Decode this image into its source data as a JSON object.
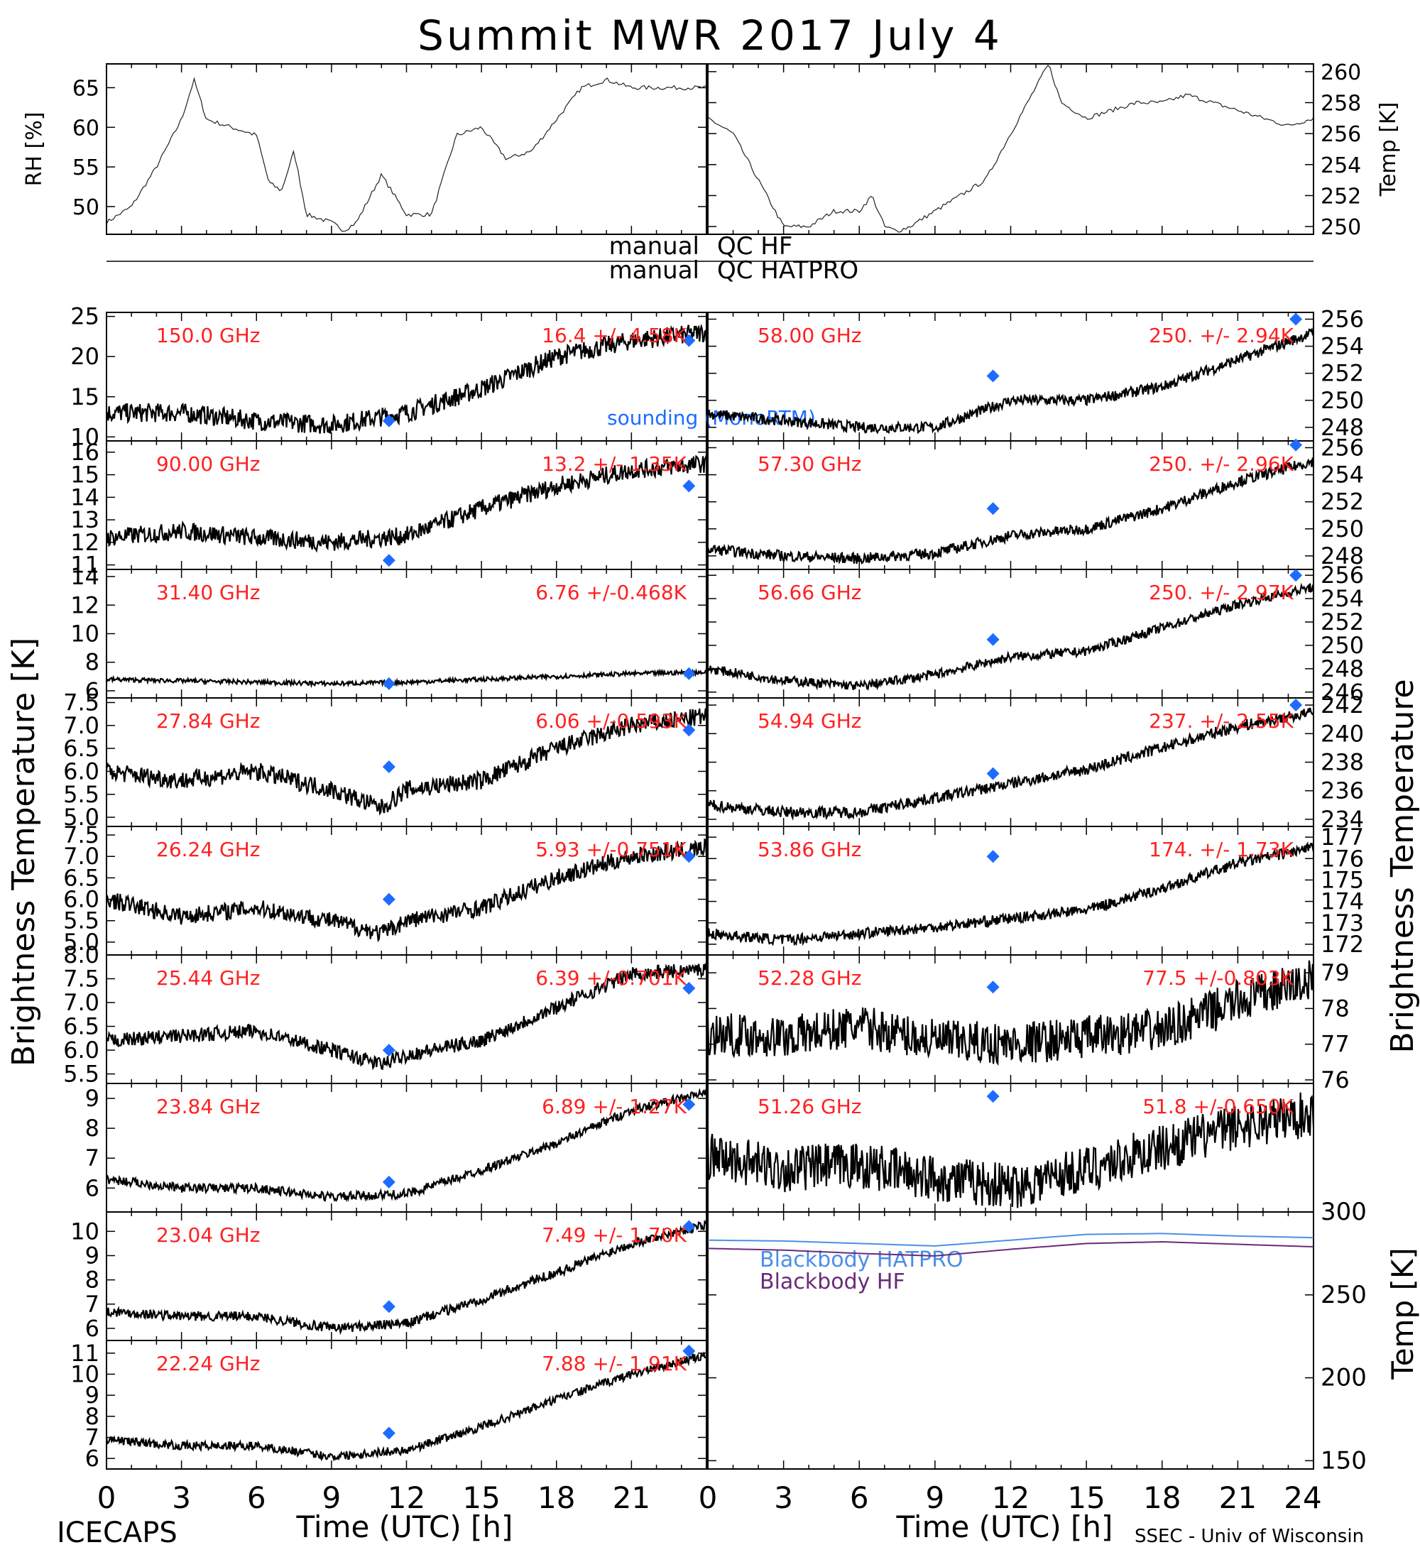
{
  "title": "Summit MWR 2017 July  4",
  "footer": {
    "left": "ICECAPS",
    "xlabel_left": "Time (UTC) [h]",
    "xlabel_right": "Time (UTC) [h]",
    "credit": "SSEC - Univ of Wisconsin"
  },
  "labels": {
    "y_left": "Brightness Temperature [K]",
    "y_right": "Brightness Temperature",
    "temp_right": "Temp [K]",
    "qc_hf": "QC HF",
    "qc_hatpro": "QC HATPRO",
    "manual1": "manual",
    "manual2": "manual",
    "sounding": "sounding (MonoRTM)"
  },
  "colors": {
    "trace": "#000000",
    "annotation": "#ff2020",
    "sounding": "#1e6cff",
    "bb_hatpro": "#4a8fe8",
    "bb_hf": "#6a2a7a"
  },
  "chart_data": [
    {
      "type": "line",
      "panel": "rh",
      "ylabel": "RH [%]",
      "ylim": [
        46.5,
        68
      ],
      "yticks": [
        50,
        55,
        60,
        65
      ],
      "x": [
        0,
        1,
        2,
        3,
        3.5,
        4,
        5,
        6,
        6.5,
        7,
        7.5,
        8,
        9,
        9.5,
        10,
        11,
        12,
        13,
        14,
        15,
        16,
        17,
        18,
        19,
        20,
        21,
        22,
        23,
        24
      ],
      "y": [
        48,
        50,
        55,
        61,
        66,
        61,
        60,
        59,
        53,
        52,
        57,
        49,
        48,
        47,
        48,
        54,
        49,
        49,
        59,
        60,
        56,
        57,
        61,
        65,
        66,
        65,
        65,
        65,
        65
      ]
    },
    {
      "type": "line",
      "panel": "temp",
      "ylabel": "Temp [K]",
      "ylim": [
        249.5,
        260.5
      ],
      "yticks": [
        250,
        252,
        254,
        256,
        258,
        260
      ],
      "x": [
        0,
        1,
        2,
        3,
        4,
        5,
        6,
        6.5,
        7,
        7.5,
        8,
        9,
        10,
        11,
        12,
        13,
        13.5,
        14,
        15,
        16,
        17,
        18,
        19,
        20,
        21,
        22,
        23,
        24
      ],
      "y": [
        257,
        256,
        253,
        250,
        250,
        251,
        251,
        252,
        250,
        249.7,
        250,
        251,
        252,
        253,
        256,
        259,
        260.5,
        258,
        257,
        257.5,
        258,
        258,
        258.5,
        258,
        257.5,
        257,
        256.5,
        257
      ]
    },
    {
      "type": "line",
      "panel": "ch",
      "freq": "150.0 GHz",
      "stats": "16.4 +/- 4.58K",
      "ylim": [
        9.5,
        25.5
      ],
      "yticks": [
        10,
        15,
        20,
        25
      ],
      "x": [
        0,
        3,
        6,
        9,
        12,
        15,
        18,
        21,
        24
      ],
      "y": [
        13,
        13,
        12,
        11.5,
        13,
        16,
        20,
        22,
        23
      ],
      "noise": 1.2,
      "sounding": [
        [
          11.3,
          12
        ],
        [
          23.3,
          22
        ]
      ]
    },
    {
      "type": "line",
      "panel": "ch",
      "freq": "58.00 GHz",
      "stats": "250. +/- 2.94K",
      "ylim": [
        247,
        256.5
      ],
      "yticks": [
        248,
        250,
        252,
        254,
        256
      ],
      "x": [
        0,
        3,
        6,
        9,
        12,
        15,
        18,
        21,
        24
      ],
      "y": [
        249,
        248.5,
        248,
        248,
        250,
        250,
        251,
        253,
        255
      ],
      "noise": 0.4,
      "sounding": [
        [
          11.3,
          251.8
        ],
        [
          23.3,
          256
        ]
      ]
    },
    {
      "type": "line",
      "panel": "ch",
      "freq": "90.00 GHz",
      "stats": "13.2 +/- 1.35K",
      "ylim": [
        10.8,
        16.5
      ],
      "yticks": [
        11,
        12,
        13,
        14,
        15,
        16
      ],
      "x": [
        0,
        3,
        6,
        9,
        12,
        15,
        18,
        21,
        24
      ],
      "y": [
        12.2,
        12.5,
        12.2,
        12,
        12.3,
        13.5,
        14.5,
        15.2,
        15.5
      ],
      "noise": 0.4,
      "sounding": [
        [
          11.3,
          11.2
        ],
        [
          23.3,
          14.5
        ]
      ]
    },
    {
      "type": "line",
      "panel": "ch",
      "freq": "57.30 GHz",
      "stats": "250. +/- 2.96K",
      "ylim": [
        247,
        256.5
      ],
      "yticks": [
        248,
        250,
        252,
        254,
        256
      ],
      "x": [
        0,
        3,
        6,
        9,
        12,
        15,
        18,
        21,
        24
      ],
      "y": [
        248.5,
        248,
        247.8,
        248.2,
        249.5,
        250,
        251.5,
        253.5,
        255
      ],
      "noise": 0.4,
      "sounding": [
        [
          11.3,
          251.5
        ],
        [
          23.3,
          256.2
        ]
      ]
    },
    {
      "type": "line",
      "panel": "ch",
      "freq": "31.40 GHz",
      "stats": "6.76 +/-0.468K",
      "ylim": [
        5.5,
        14.5
      ],
      "yticks": [
        6,
        8,
        10,
        12,
        14
      ],
      "x": [
        0,
        3,
        6,
        9,
        12,
        15,
        18,
        21,
        24
      ],
      "y": [
        6.8,
        6.7,
        6.6,
        6.5,
        6.6,
        6.8,
        7,
        7.2,
        7.3
      ],
      "noise": 0.15,
      "sounding": [
        [
          11.3,
          6.5
        ],
        [
          23.3,
          7.2
        ]
      ]
    },
    {
      "type": "line",
      "panel": "ch",
      "freq": "56.66 GHz",
      "stats": "250. +/- 2.97K",
      "ylim": [
        245.5,
        256.5
      ],
      "yticks": [
        246,
        248,
        250,
        252,
        254,
        256
      ],
      "x": [
        0,
        3,
        6,
        9,
        12,
        15,
        18,
        21,
        24
      ],
      "y": [
        248,
        247,
        246.5,
        247.5,
        249,
        249.5,
        251.5,
        253.5,
        255
      ],
      "noise": 0.4,
      "sounding": [
        [
          11.3,
          250.5
        ],
        [
          23.3,
          256
        ]
      ]
    },
    {
      "type": "line",
      "panel": "ch",
      "freq": "27.84 GHz",
      "stats": "6.06 +/-0.593K",
      "ylim": [
        4.8,
        7.6
      ],
      "yticks": [
        5.0,
        5.5,
        6.0,
        6.5,
        7.0,
        7.5
      ],
      "x": [
        0,
        3,
        6,
        9,
        11,
        12,
        15,
        18,
        21,
        24
      ],
      "y": [
        6.0,
        5.8,
        6.0,
        5.6,
        5.2,
        5.6,
        5.8,
        6.5,
        7.0,
        7.2
      ],
      "noise": 0.2,
      "sounding": [
        [
          11.3,
          6.1
        ],
        [
          23.3,
          6.9
        ]
      ]
    },
    {
      "type": "line",
      "panel": "ch",
      "freq": "54.94 GHz",
      "stats": "237. +/- 2.55K",
      "ylim": [
        233.5,
        242.5
      ],
      "yticks": [
        234,
        236,
        238,
        240,
        242
      ],
      "x": [
        0,
        3,
        6,
        9,
        12,
        15,
        18,
        21,
        24
      ],
      "y": [
        235,
        234.5,
        234.5,
        235.5,
        236.5,
        237.5,
        239,
        240.5,
        241.5
      ],
      "noise": 0.4,
      "sounding": [
        [
          11.3,
          237.2
        ],
        [
          23.3,
          242
        ]
      ]
    },
    {
      "type": "line",
      "panel": "ch",
      "freq": "26.24 GHz",
      "stats": "5.93 +/-0.751K",
      "ylim": [
        4.7,
        7.7
      ],
      "yticks": [
        5.0,
        5.5,
        6.0,
        6.5,
        7.0,
        7.5
      ],
      "x": [
        0,
        3,
        6,
        9,
        11,
        12,
        15,
        18,
        21,
        24
      ],
      "y": [
        6.0,
        5.6,
        5.8,
        5.5,
        5.2,
        5.5,
        5.8,
        6.5,
        7.0,
        7.2
      ],
      "noise": 0.2,
      "sounding": [
        [
          11.3,
          6.0
        ],
        [
          23.3,
          7.0
        ]
      ]
    },
    {
      "type": "line",
      "panel": "ch",
      "freq": "53.86 GHz",
      "stats": "174. +/- 1.73K",
      "ylim": [
        171.5,
        177.5
      ],
      "yticks": [
        172,
        173,
        174,
        175,
        176,
        177
      ],
      "x": [
        0,
        3,
        6,
        9,
        12,
        15,
        18,
        21,
        24
      ],
      "y": [
        172.5,
        172.2,
        172.5,
        172.8,
        173.2,
        173.6,
        174.6,
        175.8,
        176.5
      ],
      "noise": 0.25,
      "sounding": [
        [
          11.3,
          176.1
        ]
      ]
    },
    {
      "type": "line",
      "panel": "ch",
      "freq": "25.44 GHz",
      "stats": "6.39 +/-0.701K",
      "ylim": [
        5.3,
        8.0
      ],
      "yticks": [
        5.5,
        6.0,
        6.5,
        7.0,
        7.5,
        8.0
      ],
      "x": [
        0,
        3,
        6,
        9,
        11,
        12,
        15,
        18,
        21,
        24
      ],
      "y": [
        6.2,
        6.3,
        6.4,
        6.0,
        5.7,
        5.9,
        6.2,
        6.9,
        7.6,
        7.7
      ],
      "noise": 0.15,
      "sounding": [
        [
          11.3,
          6.0
        ],
        [
          23.3,
          7.3
        ]
      ]
    },
    {
      "type": "line",
      "panel": "ch",
      "freq": "52.28 GHz",
      "stats": "77.5 +/-0.803K",
      "ylim": [
        75.9,
        79.5
      ],
      "yticks": [
        76,
        77,
        78,
        79
      ],
      "x": [
        0,
        3,
        6,
        9,
        12,
        15,
        18,
        21,
        24
      ],
      "y": [
        77.3,
        77.2,
        77.5,
        77.1,
        77.0,
        77.2,
        77.4,
        78.2,
        78.8
      ],
      "noise": 0.6,
      "sounding": [
        [
          11.3,
          78.6
        ]
      ]
    },
    {
      "type": "line",
      "panel": "ch",
      "freq": "23.84 GHz",
      "stats": "6.89 +/- 1.27K",
      "ylim": [
        5.2,
        9.5
      ],
      "yticks": [
        6,
        7,
        8,
        9
      ],
      "x": [
        0,
        3,
        6,
        9,
        12,
        15,
        18,
        21,
        24
      ],
      "y": [
        6.3,
        6.0,
        6.0,
        5.7,
        5.8,
        6.6,
        7.5,
        8.6,
        9.2
      ],
      "noise": 0.15,
      "sounding": [
        [
          11.3,
          6.2
        ],
        [
          23.3,
          8.8
        ]
      ]
    },
    {
      "type": "line",
      "panel": "ch",
      "freq": "51.26 GHz",
      "stats": "51.8 +/-0.650K",
      "ylim": [
        50.5,
        53.5
      ],
      "x": [
        0,
        3,
        6,
        9,
        12,
        15,
        18,
        21,
        24
      ],
      "y": [
        51.8,
        51.5,
        51.6,
        51.3,
        51.1,
        51.5,
        52.0,
        52.5,
        52.8
      ],
      "noise": 0.55,
      "sounding": [
        [
          11.3,
          53.2
        ]
      ]
    },
    {
      "type": "line",
      "panel": "ch",
      "freq": "23.04 GHz",
      "stats": "7.49 +/- 1.70K",
      "ylim": [
        5.5,
        10.8
      ],
      "yticks": [
        6,
        7,
        8,
        9,
        10
      ],
      "x": [
        0,
        3,
        6,
        9,
        12,
        15,
        18,
        21,
        24
      ],
      "y": [
        6.7,
        6.5,
        6.5,
        6.0,
        6.2,
        7.2,
        8.3,
        9.5,
        10.3
      ],
      "noise": 0.2,
      "sounding": [
        [
          11.3,
          6.9
        ],
        [
          23.3,
          10.2
        ]
      ]
    },
    {
      "type": "line",
      "panel": "bb",
      "ylabel": "Temp [K]",
      "ylim": [
        145,
        300
      ],
      "yticks": [
        150,
        200,
        250,
        300
      ],
      "series": [
        {
          "name": "Blackbody HATPRO",
          "x": [
            0,
            3,
            6,
            9,
            12,
            15,
            18,
            21,
            24
          ],
          "y": [
            283,
            282.5,
            281,
            279.5,
            283,
            286.5,
            287,
            285.5,
            284.5
          ]
        },
        {
          "name": "Blackbody HF",
          "x": [
            0,
            3,
            6,
            9,
            12,
            15,
            18,
            21,
            24
          ],
          "y": [
            278,
            277,
            275,
            273.5,
            277.5,
            281,
            282,
            280.5,
            279
          ]
        }
      ]
    },
    {
      "type": "line",
      "panel": "ch",
      "freq": "22.24 GHz",
      "stats": "7.88 +/- 1.91K",
      "ylim": [
        5.5,
        11.6
      ],
      "yticks": [
        6,
        7,
        8,
        9,
        10,
        11
      ],
      "x": [
        0,
        3,
        6,
        9,
        12,
        15,
        18,
        21,
        24
      ],
      "y": [
        6.9,
        6.6,
        6.6,
        6.1,
        6.4,
        7.5,
        8.8,
        10.0,
        10.9
      ],
      "noise": 0.2,
      "sounding": [
        [
          11.3,
          7.2
        ],
        [
          23.3,
          11.1
        ]
      ]
    }
  ],
  "axis": {
    "x_ticks": [
      0,
      3,
      6,
      9,
      12,
      15,
      18,
      21,
      24
    ],
    "x_tick_labels_left": [
      "0",
      "3",
      "6",
      "9",
      "12",
      "15",
      "18",
      "21"
    ],
    "x_tick_labels_right": [
      "0",
      "3",
      "6",
      "9",
      "12",
      "15",
      "18",
      "21",
      "24"
    ]
  }
}
